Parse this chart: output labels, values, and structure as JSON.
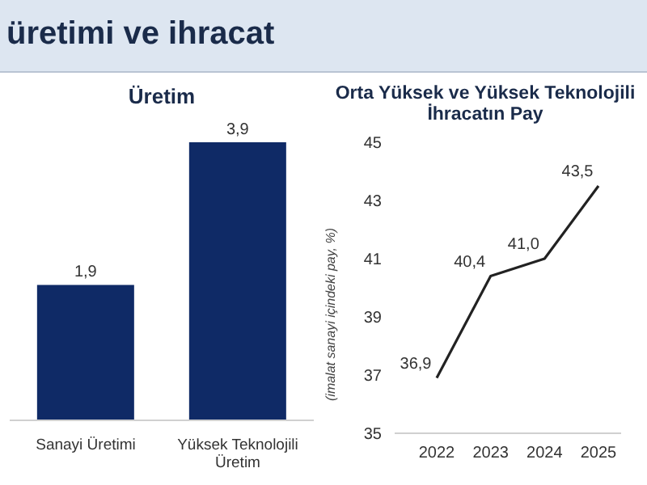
{
  "chart_data": [
    {
      "type": "other",
      "title": "üretimi ve ihracat"
    },
    {
      "type": "bar",
      "title": "Üretim",
      "categories": [
        "Sanayi Üretimi",
        "Yüksek Teknolojili Üretim"
      ],
      "values": [
        1.9,
        3.9
      ],
      "value_labels": [
        "1,9",
        "3,9"
      ],
      "color": "#0f2a66"
    },
    {
      "type": "line",
      "title": "Orta Yüksek ve Yüksek Teknolojili İhracatın Pay",
      "ylabel": "(imalat sanayi içindeki pay, %)",
      "categories": [
        "2022",
        "2023",
        "2024",
        "2025"
      ],
      "values": [
        36.9,
        40.4,
        41.0,
        43.5
      ],
      "value_labels": [
        "36,9",
        "40,4",
        "41,0",
        "43,5"
      ],
      "color": "#222222",
      "ylim": [
        35,
        45
      ],
      "yticks": [
        35,
        37,
        39,
        41,
        43,
        45
      ],
      "marker": "none",
      "line_style": "solid"
    }
  ]
}
